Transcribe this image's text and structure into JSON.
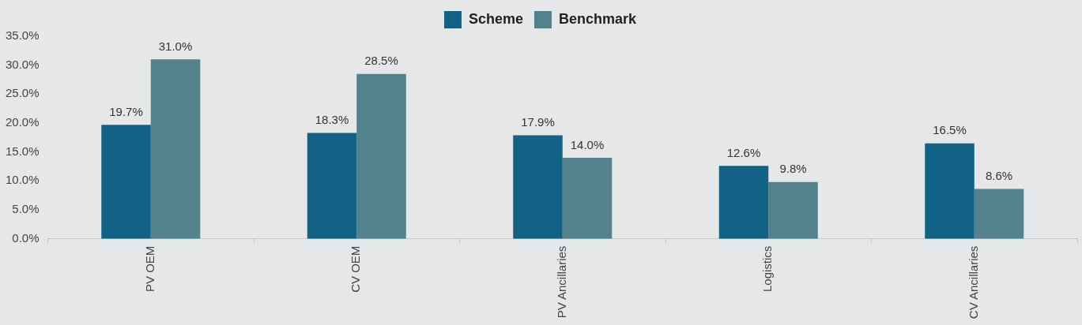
{
  "chart_data": {
    "type": "bar",
    "categories": [
      "PV OEM",
      "CV OEM",
      "PV Ancillaries",
      "Logistics",
      "CV Ancillaries"
    ],
    "series": [
      {
        "name": "Scheme",
        "color": "#126285",
        "values": [
          19.7,
          18.3,
          17.9,
          12.6,
          16.5
        ],
        "value_labels": [
          "19.7%",
          "18.3%",
          "17.9%",
          "12.6%",
          "16.5%"
        ]
      },
      {
        "name": "Benchmark",
        "color": "#53828c",
        "values": [
          31.0,
          28.5,
          14.0,
          9.8,
          8.6
        ],
        "value_labels": [
          "31.0%",
          "28.5%",
          "14.0%",
          "9.8%",
          "8.6%"
        ]
      }
    ],
    "ylim": [
      0,
      35
    ],
    "yticks": [
      {
        "value": 0,
        "label": "0.0%"
      },
      {
        "value": 5,
        "label": "5.0%"
      },
      {
        "value": 10,
        "label": "10.0%"
      },
      {
        "value": 15,
        "label": "15.0%"
      },
      {
        "value": 20,
        "label": "20.0%"
      },
      {
        "value": 25,
        "label": "25.0%"
      },
      {
        "value": 30,
        "label": "30.0%"
      },
      {
        "value": 35,
        "label": "35.0%"
      }
    ],
    "grid": false,
    "legend": "top"
  }
}
